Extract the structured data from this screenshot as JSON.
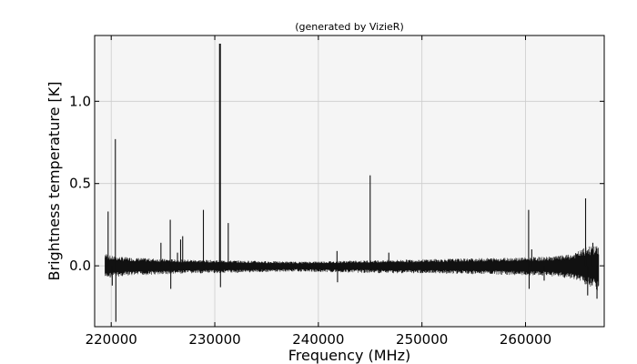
{
  "chart_data": {
    "type": "line",
    "title": "(generated by VizieR)",
    "xlabel": "Frequency (MHz)",
    "ylabel": "Brightness temperature [K]",
    "xlim": [
      218400,
      267600
    ],
    "ylim": [
      -0.37,
      1.4
    ],
    "grid": true,
    "x_ticks": [
      220000,
      230000,
      240000,
      250000,
      260000
    ],
    "x_tick_labels": [
      "220000",
      "230000",
      "240000",
      "250000",
      "260000"
    ],
    "y_ticks": [
      0.0,
      0.5,
      1.0
    ],
    "y_tick_labels": [
      "0.0",
      "0.5",
      "1.0"
    ],
    "colors": {
      "line": "#111111",
      "plot_background": "#f5f5f5",
      "grid": "#cccccc"
    },
    "series": [
      {
        "x_range": [
          219400,
          267100
        ],
        "baseline_noise": [
          {
            "x": 219400,
            "low": -0.08,
            "high": 0.08
          },
          {
            "x": 220000,
            "low": -0.07,
            "high": 0.06
          },
          {
            "x": 222000,
            "low": -0.06,
            "high": 0.05
          },
          {
            "x": 226000,
            "low": -0.05,
            "high": 0.04
          },
          {
            "x": 230000,
            "low": -0.045,
            "high": 0.035
          },
          {
            "x": 234000,
            "low": -0.04,
            "high": 0.03
          },
          {
            "x": 238000,
            "low": -0.035,
            "high": 0.025
          },
          {
            "x": 242000,
            "low": -0.04,
            "high": 0.03
          },
          {
            "x": 246000,
            "low": -0.045,
            "high": 0.035
          },
          {
            "x": 250000,
            "low": -0.045,
            "high": 0.04
          },
          {
            "x": 254000,
            "low": -0.05,
            "high": 0.045
          },
          {
            "x": 258000,
            "low": -0.055,
            "high": 0.05
          },
          {
            "x": 262000,
            "low": -0.06,
            "high": 0.055
          },
          {
            "x": 264500,
            "low": -0.08,
            "high": 0.07
          },
          {
            "x": 266000,
            "low": -0.12,
            "high": 0.12
          },
          {
            "x": 267100,
            "low": -0.16,
            "high": 0.12
          }
        ],
        "peaks": [
          {
            "x": 219700,
            "y": 0.33
          },
          {
            "x": 220100,
            "y": -0.12
          },
          {
            "x": 220400,
            "y": 0.77
          },
          {
            "x": 220450,
            "y": -0.34
          },
          {
            "x": 224800,
            "y": 0.14
          },
          {
            "x": 225700,
            "y": 0.28
          },
          {
            "x": 225750,
            "y": -0.14
          },
          {
            "x": 226400,
            "y": 0.08
          },
          {
            "x": 226700,
            "y": 0.16
          },
          {
            "x": 226900,
            "y": 0.18
          },
          {
            "x": 228900,
            "y": 0.34
          },
          {
            "x": 230500,
            "y": 1.35
          },
          {
            "x": 230550,
            "y": -0.13
          },
          {
            "x": 231300,
            "y": 0.26
          },
          {
            "x": 241800,
            "y": 0.09
          },
          {
            "x": 241850,
            "y": -0.1
          },
          {
            "x": 245000,
            "y": 0.55
          },
          {
            "x": 246800,
            "y": 0.08
          },
          {
            "x": 260300,
            "y": 0.34
          },
          {
            "x": 260350,
            "y": -0.14
          },
          {
            "x": 260600,
            "y": 0.1
          },
          {
            "x": 261800,
            "y": -0.09
          },
          {
            "x": 265800,
            "y": 0.41
          },
          {
            "x": 266000,
            "y": -0.18
          },
          {
            "x": 266500,
            "y": 0.14
          },
          {
            "x": 266900,
            "y": -0.2
          }
        ]
      }
    ]
  }
}
